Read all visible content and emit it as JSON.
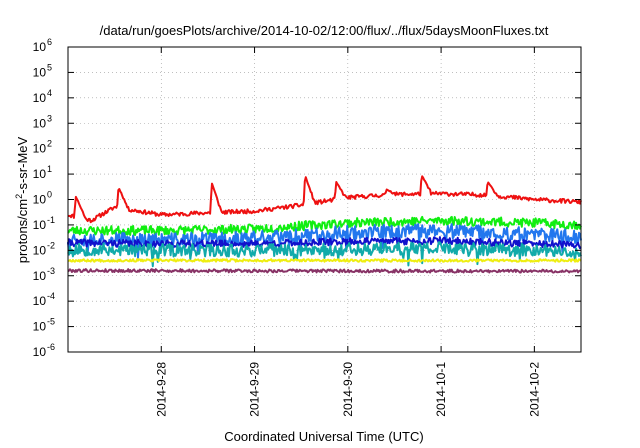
{
  "chart_data": {
    "type": "line",
    "title": "/data/run/goesPlots/archive/2014-10-02/12:00/flux/../flux/5daysMoonFluxes.txt",
    "xlabel": "Coordinated Universal Time (UTC)",
    "ylabel": "protons/cm²-s-sr-MeV",
    "ylabel_parts": {
      "before": "protons/cm",
      "sup": "2",
      "after": "-s-sr-MeV"
    },
    "y_scale": "log",
    "ylim": [
      1e-06,
      1000000.0
    ],
    "y_ticks": [
      {
        "base": "10",
        "exp": "6",
        "value": 1000000.0
      },
      {
        "base": "10",
        "exp": "5",
        "value": 100000.0
      },
      {
        "base": "10",
        "exp": "4",
        "value": 10000.0
      },
      {
        "base": "10",
        "exp": "3",
        "value": 1000.0
      },
      {
        "base": "10",
        "exp": "2",
        "value": 100.0
      },
      {
        "base": "10",
        "exp": "1",
        "value": 10.0
      },
      {
        "base": "10",
        "exp": "0",
        "value": 1.0
      },
      {
        "base": "10",
        "exp": "-1",
        "value": 0.1
      },
      {
        "base": "10",
        "exp": "-2",
        "value": 0.01
      },
      {
        "base": "10",
        "exp": "-3",
        "value": 0.001
      },
      {
        "base": "10",
        "exp": "-4",
        "value": 0.0001
      },
      {
        "base": "10",
        "exp": "-5",
        "value": 1e-05
      },
      {
        "base": "10",
        "exp": "-6",
        "value": 1e-06
      }
    ],
    "xlim": [
      "2014-09-27T00:00",
      "2014-10-02T12:00"
    ],
    "x_ticks": [
      {
        "label": "2014-9-28",
        "value": "2014-09-28T00:00"
      },
      {
        "label": "2014-9-29",
        "value": "2014-09-29T00:00"
      },
      {
        "label": "2014-9-30",
        "value": "2014-09-30T00:00"
      },
      {
        "label": "2014-10-1",
        "value": "2014-10-01T00:00"
      },
      {
        "label": "2014-10-2",
        "value": "2014-10-02T00:00"
      }
    ],
    "grid": true,
    "series": [
      {
        "color": "#ee1111",
        "base": 0.6,
        "trend": 1.0,
        "noise": 0.08,
        "seed": 11,
        "peaks": [
          {
            "x": "2014-09-27T02:00",
            "value": 1.3
          },
          {
            "x": "2014-09-27T13:00",
            "value": 3.0
          },
          {
            "x": "2014-09-28T13:00",
            "value": 4.5
          },
          {
            "x": "2014-09-29T13:00",
            "value": 9.0
          },
          {
            "x": "2014-09-29T21:00",
            "value": 5.0
          },
          {
            "x": "2014-09-30T10:00",
            "value": 2.5
          },
          {
            "x": "2014-09-30T19:00",
            "value": 9.0
          },
          {
            "x": "2014-10-01T12:00",
            "value": 5.0
          }
        ],
        "points": [
          {
            "x": "2014-09-27T00:00",
            "value": 0.25
          },
          {
            "x": "2014-09-27T06:00",
            "value": 0.15
          },
          {
            "x": "2014-09-27T12:00",
            "value": 0.5
          },
          {
            "x": "2014-09-28T00:00",
            "value": 0.25
          },
          {
            "x": "2014-09-28T12:00",
            "value": 0.3
          },
          {
            "x": "2014-09-29T00:00",
            "value": 0.35
          },
          {
            "x": "2014-09-29T12:00",
            "value": 0.6
          },
          {
            "x": "2014-09-30T00:00",
            "value": 1.2
          },
          {
            "x": "2014-09-30T12:00",
            "value": 1.6
          },
          {
            "x": "2014-10-01T00:00",
            "value": 1.7
          },
          {
            "x": "2014-10-01T12:00",
            "value": 1.5
          },
          {
            "x": "2014-10-02T00:00",
            "value": 1.0
          },
          {
            "x": "2014-10-02T12:00",
            "value": 0.8
          }
        ]
      },
      {
        "color": "#11ee11",
        "noise": 0.18,
        "seed": 23,
        "points": [
          {
            "x": "2014-09-27T00:00",
            "value": 0.06
          },
          {
            "x": "2014-09-28T00:00",
            "value": 0.06
          },
          {
            "x": "2014-09-29T00:00",
            "value": 0.07
          },
          {
            "x": "2014-09-30T00:00",
            "value": 0.12
          },
          {
            "x": "2014-10-01T00:00",
            "value": 0.15
          },
          {
            "x": "2014-10-02T00:00",
            "value": 0.12
          },
          {
            "x": "2014-10-02T12:00",
            "value": 0.1
          }
        ]
      },
      {
        "color": "#2277ee",
        "noise": 0.28,
        "seed": 37,
        "points": [
          {
            "x": "2014-09-27T00:00",
            "value": 0.03
          },
          {
            "x": "2014-09-28T00:00",
            "value": 0.025
          },
          {
            "x": "2014-09-29T00:00",
            "value": 0.03
          },
          {
            "x": "2014-09-30T00:00",
            "value": 0.05
          },
          {
            "x": "2014-10-01T00:00",
            "value": 0.06
          },
          {
            "x": "2014-10-02T00:00",
            "value": 0.04
          },
          {
            "x": "2014-10-02T12:00",
            "value": 0.035
          }
        ]
      },
      {
        "color": "#1111cc",
        "noise": 0.14,
        "seed": 41,
        "points": [
          {
            "x": "2014-09-27T00:00",
            "value": 0.02
          },
          {
            "x": "2014-09-28T00:00",
            "value": 0.018
          },
          {
            "x": "2014-09-29T00:00",
            "value": 0.018
          },
          {
            "x": "2014-09-30T00:00",
            "value": 0.022
          },
          {
            "x": "2014-10-01T00:00",
            "value": 0.024
          },
          {
            "x": "2014-10-02T00:00",
            "value": 0.018
          },
          {
            "x": "2014-10-02T12:00",
            "value": 0.016
          }
        ]
      },
      {
        "color": "#11aaaa",
        "noise": 0.25,
        "seed": 53,
        "points": [
          {
            "x": "2014-09-27T00:00",
            "value": 0.011
          },
          {
            "x": "2014-09-28T00:00",
            "value": 0.01
          },
          {
            "x": "2014-09-29T00:00",
            "value": 0.01
          },
          {
            "x": "2014-09-30T00:00",
            "value": 0.011
          },
          {
            "x": "2014-10-01T00:00",
            "value": 0.012
          },
          {
            "x": "2014-10-02T00:00",
            "value": 0.01
          },
          {
            "x": "2014-10-02T12:00",
            "value": 0.009
          }
        ]
      },
      {
        "color": "#eeee11",
        "noise": 0.05,
        "seed": 67,
        "points": [
          {
            "x": "2014-09-27T00:00",
            "value": 0.004
          },
          {
            "x": "2014-10-02T12:00",
            "value": 0.004
          }
        ]
      },
      {
        "color": "#883366",
        "noise": 0.06,
        "seed": 79,
        "points": [
          {
            "x": "2014-09-27T00:00",
            "value": 0.0016
          },
          {
            "x": "2014-10-02T12:00",
            "value": 0.0015
          }
        ]
      }
    ]
  }
}
